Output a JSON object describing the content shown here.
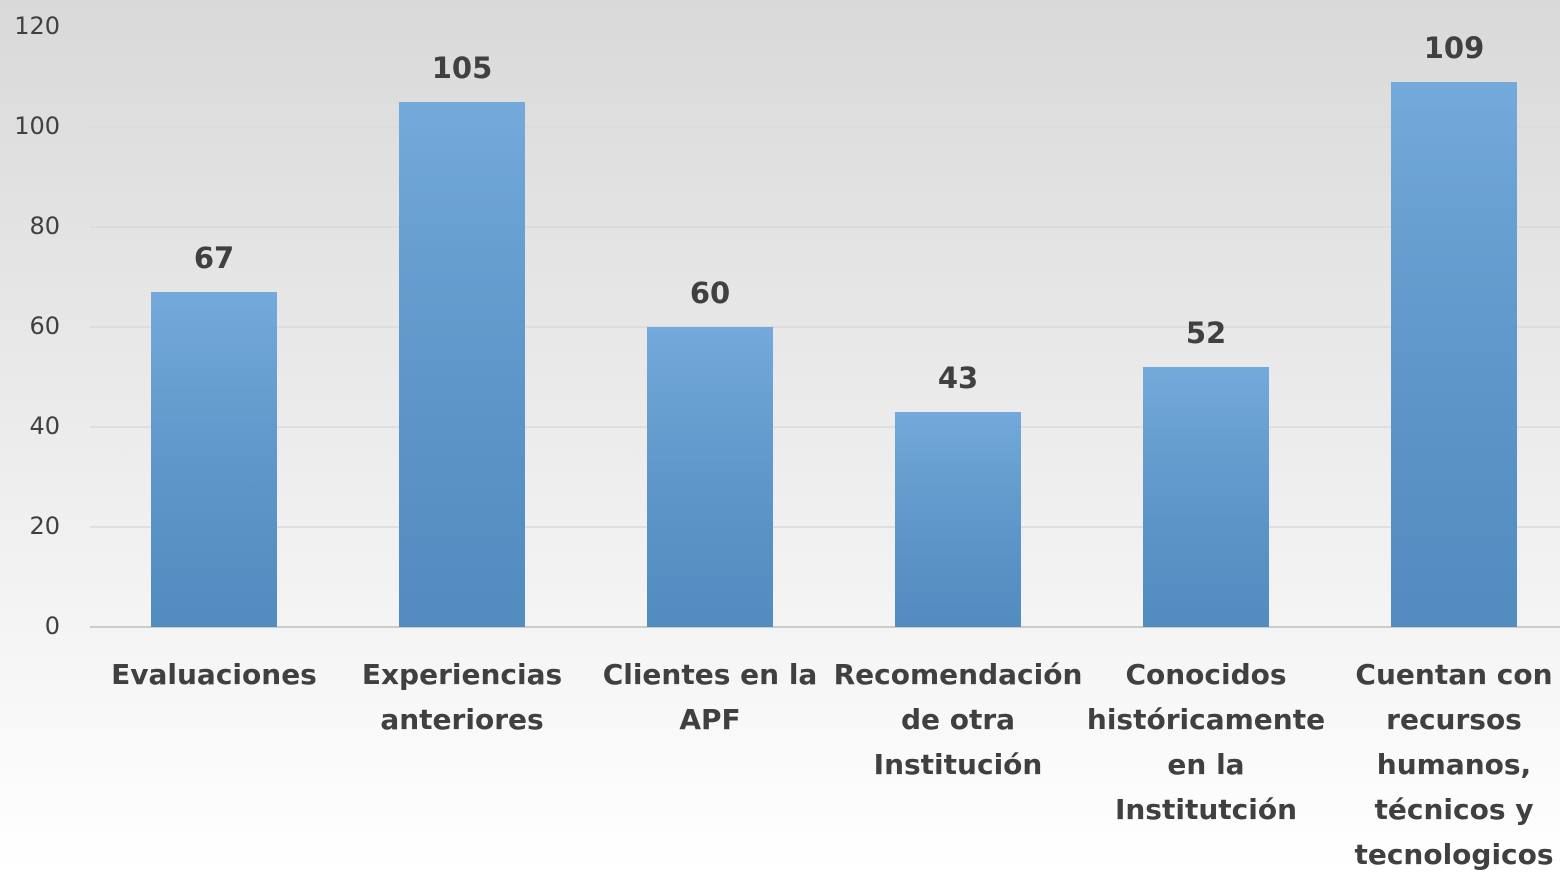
{
  "chart_data": {
    "type": "bar",
    "categories": [
      "Evaluaciones",
      "Experiencias anteriores",
      "Clientes en la APF",
      "Recomendación de otra Institución",
      "Conocidos históricamente en la Institutción",
      "Cuentan con recursos humanos, técnicos y tecnologicos"
    ],
    "values": [
      67,
      105,
      60,
      43,
      52,
      109
    ],
    "color": "#5b9bd5",
    "ylim": [
      0,
      120
    ],
    "yticks": [
      0,
      20,
      40,
      60,
      80,
      100,
      120
    ],
    "grid": true
  }
}
